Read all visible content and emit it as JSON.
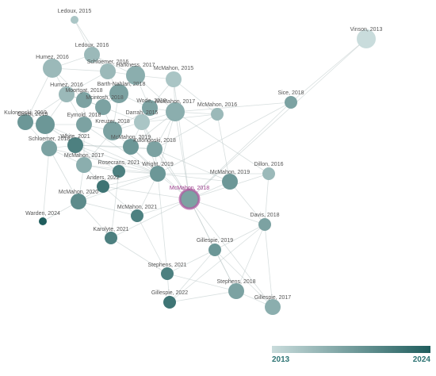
{
  "colors": {
    "edge": "#b8c4c4",
    "year_min_color": "#c9dcdc",
    "year_max_color": "#1f5d5d",
    "selected_ring": "#b05aa0",
    "selected_label": "#9a3a8a"
  },
  "legend": {
    "min_label": "2013",
    "max_label": "2024"
  },
  "network": {
    "selected": "McMahon, 2018",
    "nodes": [
      {
        "id": "Ledoux, 2015",
        "label": "Ledoux, 2015",
        "year": 2015,
        "weight": 1
      },
      {
        "id": "Vinson, 2013",
        "label": "Vinson, 2013",
        "year": 2013,
        "weight": 4
      },
      {
        "id": "Ledoux, 2016",
        "label": "Ledoux, 2016",
        "year": 2016,
        "weight": 3
      },
      {
        "id": "Humez, 2016",
        "label": "Humez, 2016",
        "year": 2016,
        "weight": 4
      },
      {
        "id": "Schloemer, 2016",
        "label": "Schloemer, 2016",
        "year": 2016,
        "weight": 3
      },
      {
        "id": "Harkness, 2017",
        "label": "Harkness, 2017",
        "year": 2017,
        "weight": 4
      },
      {
        "id": "McMahon, 2015",
        "label": "McMahon, 2015",
        "year": 2015,
        "weight": 3
      },
      {
        "id": "Barth-Nahlan, 2018",
        "label": "Barth-Nahlan, 2018",
        "year": 2018,
        "weight": 4
      },
      {
        "id": "Humez, 2016b",
        "label": "Humez, 2016",
        "year": 2016,
        "weight": 3
      },
      {
        "id": "Moortgat, 2018",
        "label": "Moortgat, 2018",
        "year": 2018,
        "weight": 3
      },
      {
        "id": "Mcintosh, 2018",
        "label": "Mcintosh, 2018",
        "year": 2018,
        "weight": 3
      },
      {
        "id": "Sice, 2018",
        "label": "Sice, 2018",
        "year": 2018,
        "weight": 2
      },
      {
        "id": "Wode, 2018",
        "label": "Wode, 2018",
        "year": 2018,
        "weight": 3
      },
      {
        "id": "McMahon, 2017",
        "label": "McMahon, 2017",
        "year": 2017,
        "weight": 4
      },
      {
        "id": "McMahon, 2016",
        "label": "McMahon, 2016",
        "year": 2016,
        "weight": 2
      },
      {
        "id": "Kulongoski, 2019",
        "label": "Kulongoski, 2019",
        "year": 2019,
        "weight": 3
      },
      {
        "id": "Carrol, 2019",
        "label": "Carrol, 2019",
        "year": 2019,
        "weight": 4
      },
      {
        "id": "Eymold, 2018",
        "label": "Eymold, 2018",
        "year": 2018,
        "weight": 3
      },
      {
        "id": "Darrah, 2015",
        "label": "Darrah, 2015",
        "year": 2015,
        "weight": 3
      },
      {
        "id": "Kreuzer, 2018",
        "label": "Kreuzer, 2018",
        "year": 2018,
        "weight": 4
      },
      {
        "id": "Schloemer, 2018",
        "label": "Schloemer, 2018",
        "year": 2018,
        "weight": 3
      },
      {
        "id": "White, 2021",
        "label": "White, 2021",
        "year": 2021,
        "weight": 3
      },
      {
        "id": "McMahon, 2019",
        "label": "McMahon, 2019",
        "year": 2019,
        "weight": 3
      },
      {
        "id": "Kulongoski, 2018",
        "label": "Kulongoski, 2018",
        "year": 2018,
        "weight": 3
      },
      {
        "id": "McMahon, 2017b",
        "label": "McMahon, 2017",
        "year": 2017,
        "weight": 3
      },
      {
        "id": "Rosecrans, 2021",
        "label": "Rosecrans, 2021",
        "year": 2021,
        "weight": 2
      },
      {
        "id": "Wright, 2019",
        "label": "Wright, 2019",
        "year": 2019,
        "weight": 3
      },
      {
        "id": "Dillon, 2016",
        "label": "Dillon, 2016",
        "year": 2016,
        "weight": 2
      },
      {
        "id": "McMahon, 2019b",
        "label": "McMahon, 2019",
        "year": 2019,
        "weight": 3
      },
      {
        "id": "Anders, 2022",
        "label": "Anders, 2022",
        "year": 2022,
        "weight": 2
      },
      {
        "id": "McMahon, 2018",
        "label": "McMahon, 2018",
        "year": 2018,
        "weight": 5
      },
      {
        "id": "McMahon, 2020",
        "label": "McMahon, 2020",
        "year": 2020,
        "weight": 3
      },
      {
        "id": "McMahon, 2021",
        "label": "McMahon, 2021",
        "year": 2021,
        "weight": 2
      },
      {
        "id": "Warden, 2024",
        "label": "Warden, 2024",
        "year": 2024,
        "weight": 1
      },
      {
        "id": "Davis, 2018",
        "label": "Davis, 2018",
        "year": 2018,
        "weight": 2
      },
      {
        "id": "Karolyte, 2021",
        "label": "Karolyte, 2021",
        "year": 2021,
        "weight": 2
      },
      {
        "id": "Gillespie, 2019",
        "label": "Gillespie, 2019",
        "year": 2019,
        "weight": 2
      },
      {
        "id": "Stephens, 2021",
        "label": "Stephens, 2021",
        "year": 2021,
        "weight": 2
      },
      {
        "id": "Stephens, 2018",
        "label": "Stephens, 2018",
        "year": 2018,
        "weight": 3
      },
      {
        "id": "Gillespie, 2022",
        "label": "Gillespie, 2022",
        "year": 2022,
        "weight": 2
      },
      {
        "id": "Gillespie, 2017",
        "label": "Gillespie, 2017",
        "year": 2017,
        "weight": 3
      }
    ]
  }
}
